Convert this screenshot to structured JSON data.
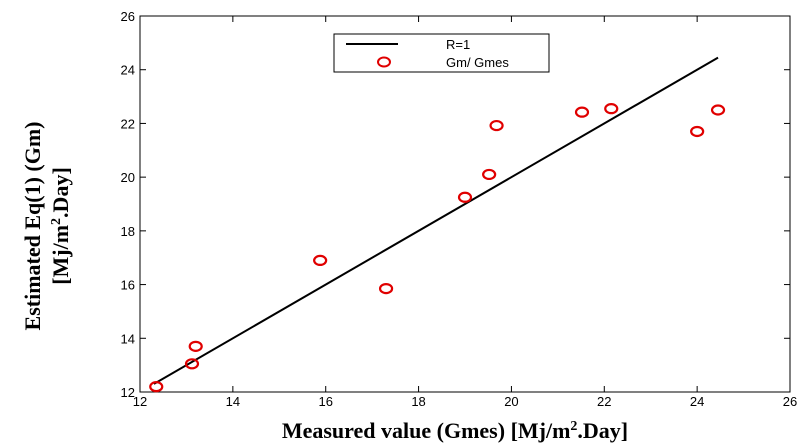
{
  "chart_data": {
    "type": "scatter",
    "xlim": [
      12,
      26
    ],
    "ylim": [
      12,
      26
    ],
    "x_ticks": [
      12,
      14,
      16,
      18,
      20,
      22,
      24,
      26
    ],
    "y_ticks": [
      12,
      14,
      16,
      18,
      20,
      22,
      24,
      26
    ],
    "xlabel": "Measured value (Gmes) [Mj/m2.Day]",
    "xlabel_parts": {
      "before": "Measured value (Gmes) [Mj/m",
      "sup": "2",
      "after": ".Day]"
    },
    "ylabel_line1": "Estimated Eq(1) (Gm)",
    "ylabel_line2_parts": {
      "before": "[Mj/m",
      "sup": "2",
      "after": ".Day]"
    },
    "grid": false,
    "legend_position": "top-center",
    "series": [
      {
        "name": "R=1",
        "kind": "line",
        "color": "#000000",
        "x": [
          12.3,
          24.45
        ],
        "y": [
          12.3,
          24.45
        ]
      },
      {
        "name": "Gm/ Gmes",
        "kind": "scatter",
        "marker": "circle-open",
        "color": "#e00000",
        "x": [
          12.35,
          13.12,
          13.2,
          15.88,
          17.3,
          19.0,
          19.52,
          19.68,
          21.52,
          22.15,
          24.0,
          24.45
        ],
        "y": [
          12.2,
          13.05,
          13.7,
          16.9,
          15.85,
          19.25,
          20.1,
          21.92,
          22.42,
          22.55,
          21.7,
          22.5
        ]
      }
    ]
  }
}
